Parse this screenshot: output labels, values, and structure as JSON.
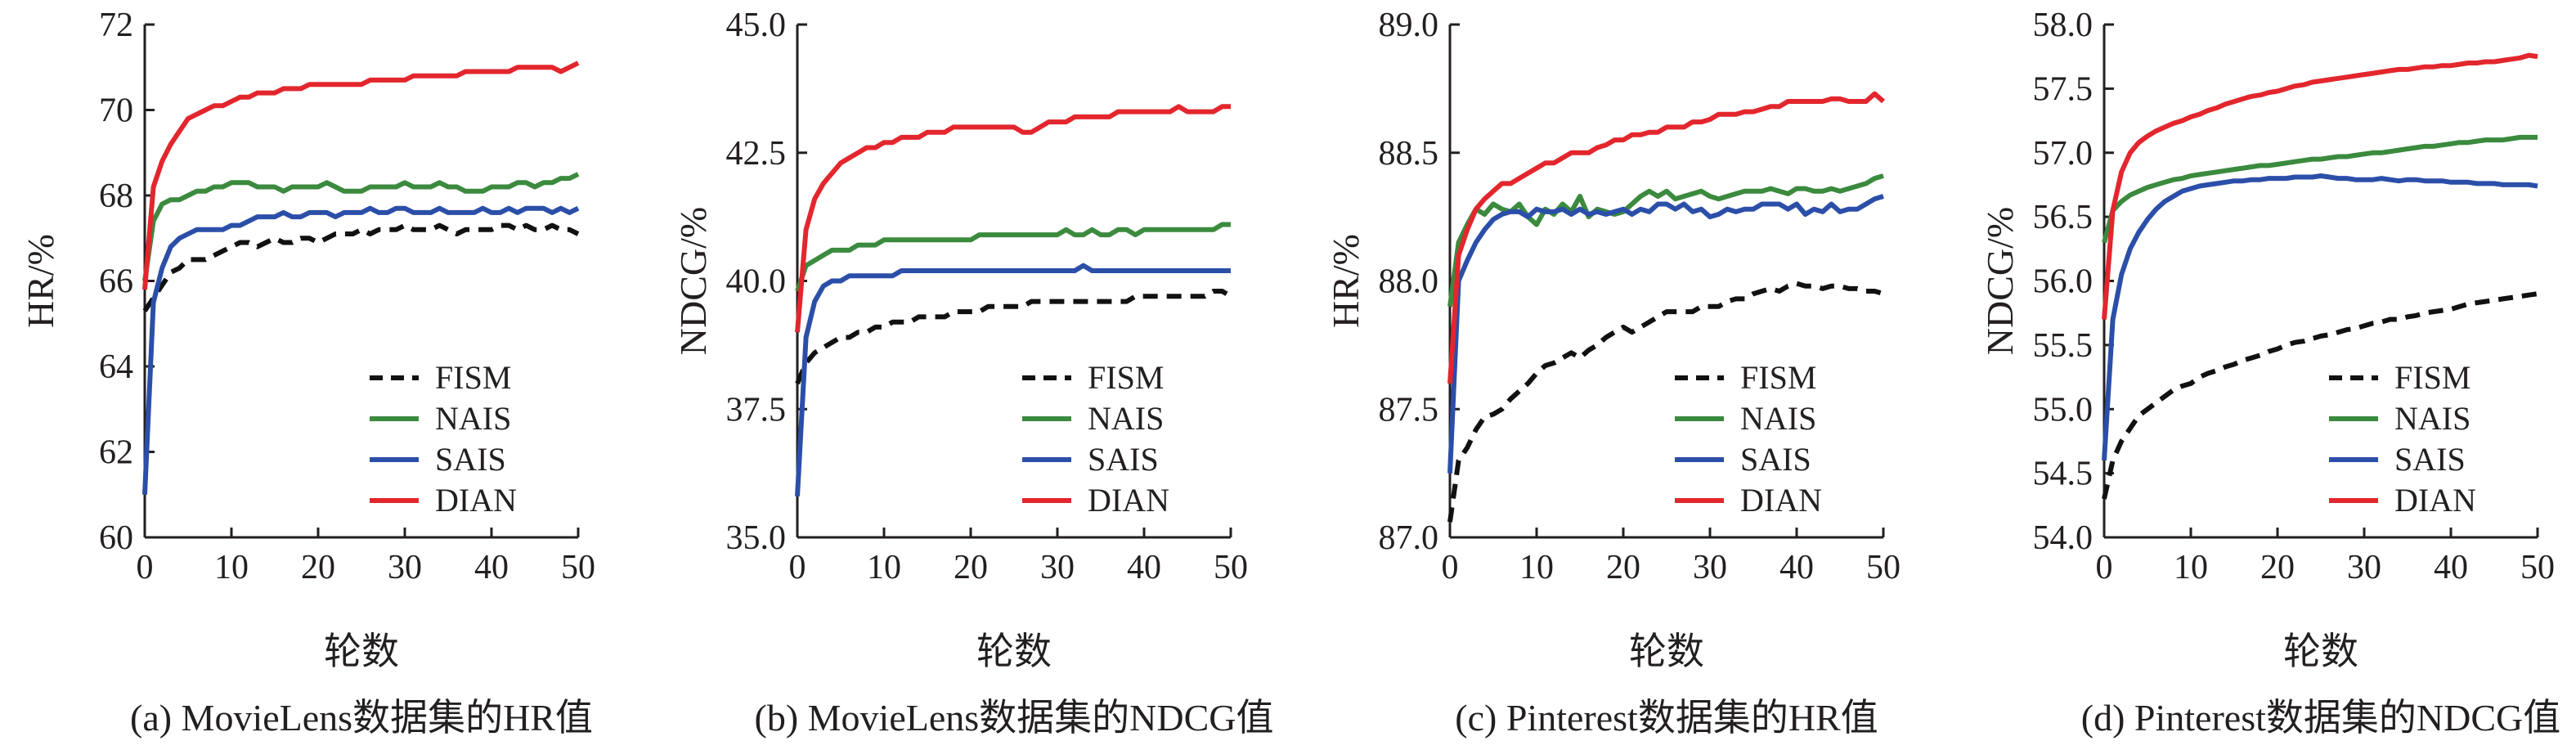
{
  "chart_data": [
    {
      "type": "line",
      "title": "(a) MovieLens数据集的HR值",
      "xlabel": "轮数",
      "ylabel": "HR/%",
      "xlim": [
        0,
        50
      ],
      "ylim": [
        60,
        72
      ],
      "xticks": [
        0,
        10,
        20,
        30,
        40,
        50
      ],
      "yticks": [
        60,
        62,
        64,
        66,
        68,
        70,
        72
      ],
      "ytick_labels": [
        "60",
        "62",
        "64",
        "66",
        "68",
        "70",
        "72"
      ],
      "legend_position": "bottom-right",
      "series": [
        {
          "name": "FISM",
          "style": "dashed",
          "color": "#111111",
          "values": [
            65.3,
            65.6,
            65.9,
            66.2,
            66.3,
            66.5,
            66.5,
            66.5,
            66.6,
            66.7,
            66.8,
            66.9,
            66.9,
            66.8,
            66.9,
            67.0,
            66.9,
            66.9,
            67.0,
            67.0,
            66.9,
            67.0,
            67.1,
            67.1,
            67.1,
            67.2,
            67.1,
            67.2,
            67.2,
            67.2,
            67.3,
            67.2,
            67.2,
            67.2,
            67.3,
            67.2,
            67.1,
            67.2,
            67.2,
            67.2,
            67.2,
            67.3,
            67.3,
            67.2,
            67.3,
            67.2,
            67.2,
            67.3,
            67.2,
            67.2,
            67.1
          ]
        },
        {
          "name": "NAIS",
          "style": "solid",
          "color": "#3b8a3e",
          "values": [
            66.0,
            67.4,
            67.8,
            67.9,
            67.9,
            68.0,
            68.1,
            68.1,
            68.2,
            68.2,
            68.3,
            68.3,
            68.3,
            68.2,
            68.2,
            68.2,
            68.1,
            68.2,
            68.2,
            68.2,
            68.2,
            68.3,
            68.2,
            68.1,
            68.1,
            68.1,
            68.2,
            68.2,
            68.2,
            68.2,
            68.3,
            68.2,
            68.2,
            68.2,
            68.3,
            68.2,
            68.2,
            68.1,
            68.1,
            68.1,
            68.2,
            68.2,
            68.2,
            68.3,
            68.3,
            68.2,
            68.3,
            68.3,
            68.4,
            68.4,
            68.5
          ]
        },
        {
          "name": "SAIS",
          "style": "solid",
          "color": "#2b4fa8",
          "values": [
            61.0,
            65.5,
            66.3,
            66.8,
            67.0,
            67.1,
            67.2,
            67.2,
            67.2,
            67.2,
            67.3,
            67.3,
            67.4,
            67.5,
            67.5,
            67.5,
            67.6,
            67.5,
            67.5,
            67.6,
            67.6,
            67.6,
            67.5,
            67.6,
            67.6,
            67.6,
            67.7,
            67.6,
            67.6,
            67.7,
            67.7,
            67.6,
            67.6,
            67.6,
            67.7,
            67.6,
            67.6,
            67.6,
            67.6,
            67.7,
            67.6,
            67.6,
            67.7,
            67.6,
            67.7,
            67.7,
            67.7,
            67.6,
            67.7,
            67.6,
            67.7
          ]
        },
        {
          "name": "DIAN",
          "style": "solid",
          "color": "#e3262d",
          "values": [
            65.8,
            68.2,
            68.8,
            69.2,
            69.5,
            69.8,
            69.9,
            70.0,
            70.1,
            70.1,
            70.2,
            70.3,
            70.3,
            70.4,
            70.4,
            70.4,
            70.5,
            70.5,
            70.5,
            70.6,
            70.6,
            70.6,
            70.6,
            70.6,
            70.6,
            70.6,
            70.7,
            70.7,
            70.7,
            70.7,
            70.7,
            70.8,
            70.8,
            70.8,
            70.8,
            70.8,
            70.8,
            70.9,
            70.9,
            70.9,
            70.9,
            70.9,
            70.9,
            71.0,
            71.0,
            71.0,
            71.0,
            71.0,
            70.9,
            71.0,
            71.1
          ]
        }
      ]
    },
    {
      "type": "line",
      "title": "(b) MovieLens数据集的NDCG值",
      "xlabel": "轮数",
      "ylabel": "NDCG/%",
      "xlim": [
        0,
        50
      ],
      "ylim": [
        35,
        45
      ],
      "xticks": [
        0,
        10,
        20,
        30,
        40,
        50
      ],
      "yticks": [
        35,
        37.5,
        40,
        42.5,
        45
      ],
      "ytick_labels": [
        "35.0",
        "37.5",
        "40.0",
        "42.5",
        "45.0"
      ],
      "legend_position": "bottom-right",
      "series": [
        {
          "name": "FISM",
          "style": "dashed",
          "color": "#111111",
          "values": [
            38.0,
            38.4,
            38.6,
            38.7,
            38.8,
            38.9,
            38.9,
            39.0,
            39.0,
            39.1,
            39.1,
            39.2,
            39.2,
            39.2,
            39.3,
            39.3,
            39.3,
            39.3,
            39.4,
            39.4,
            39.4,
            39.4,
            39.5,
            39.5,
            39.5,
            39.5,
            39.5,
            39.6,
            39.6,
            39.6,
            39.6,
            39.6,
            39.6,
            39.6,
            39.6,
            39.6,
            39.6,
            39.6,
            39.6,
            39.7,
            39.7,
            39.7,
            39.7,
            39.7,
            39.7,
            39.7,
            39.7,
            39.7,
            39.8,
            39.8,
            39.7
          ]
        },
        {
          "name": "NAIS",
          "style": "solid",
          "color": "#3b8a3e",
          "values": [
            39.8,
            40.3,
            40.4,
            40.5,
            40.6,
            40.6,
            40.6,
            40.7,
            40.7,
            40.7,
            40.8,
            40.8,
            40.8,
            40.8,
            40.8,
            40.8,
            40.8,
            40.8,
            40.8,
            40.8,
            40.8,
            40.9,
            40.9,
            40.9,
            40.9,
            40.9,
            40.9,
            40.9,
            40.9,
            40.9,
            40.9,
            41.0,
            40.9,
            40.9,
            41.0,
            40.9,
            40.9,
            41.0,
            41.0,
            40.9,
            41.0,
            41.0,
            41.0,
            41.0,
            41.0,
            41.0,
            41.0,
            41.0,
            41.0,
            41.1,
            41.1
          ]
        },
        {
          "name": "SAIS",
          "style": "solid",
          "color": "#2b4fa8",
          "values": [
            35.8,
            38.9,
            39.6,
            39.9,
            40.0,
            40.0,
            40.1,
            40.1,
            40.1,
            40.1,
            40.1,
            40.1,
            40.2,
            40.2,
            40.2,
            40.2,
            40.2,
            40.2,
            40.2,
            40.2,
            40.2,
            40.2,
            40.2,
            40.2,
            40.2,
            40.2,
            40.2,
            40.2,
            40.2,
            40.2,
            40.2,
            40.2,
            40.2,
            40.3,
            40.2,
            40.2,
            40.2,
            40.2,
            40.2,
            40.2,
            40.2,
            40.2,
            40.2,
            40.2,
            40.2,
            40.2,
            40.2,
            40.2,
            40.2,
            40.2,
            40.2
          ]
        },
        {
          "name": "DIAN",
          "style": "solid",
          "color": "#e3262d",
          "values": [
            39.0,
            41.0,
            41.6,
            41.9,
            42.1,
            42.3,
            42.4,
            42.5,
            42.6,
            42.6,
            42.7,
            42.7,
            42.8,
            42.8,
            42.8,
            42.9,
            42.9,
            42.9,
            43.0,
            43.0,
            43.0,
            43.0,
            43.0,
            43.0,
            43.0,
            43.0,
            42.9,
            42.9,
            43.0,
            43.1,
            43.1,
            43.1,
            43.2,
            43.2,
            43.2,
            43.2,
            43.2,
            43.3,
            43.3,
            43.3,
            43.3,
            43.3,
            43.3,
            43.3,
            43.4,
            43.3,
            43.3,
            43.3,
            43.3,
            43.4,
            43.4
          ]
        }
      ]
    },
    {
      "type": "line",
      "title": "(c) Pinterest数据集的HR值",
      "xlabel": "轮数",
      "ylabel": "HR/%",
      "xlim": [
        0,
        50
      ],
      "ylim": [
        87,
        89
      ],
      "xticks": [
        0,
        10,
        20,
        30,
        40,
        50
      ],
      "yticks": [
        87,
        87.5,
        88,
        88.5,
        89
      ],
      "ytick_labels": [
        "87.0",
        "87.5",
        "88.0",
        "88.5",
        "89.0"
      ],
      "legend_position": "bottom-right",
      "series": [
        {
          "name": "FISM",
          "style": "dashed",
          "color": "#111111",
          "values": [
            87.06,
            87.3,
            87.35,
            87.42,
            87.47,
            87.48,
            87.5,
            87.54,
            87.57,
            87.6,
            87.64,
            87.67,
            87.68,
            87.7,
            87.72,
            87.7,
            87.73,
            87.75,
            87.78,
            87.8,
            87.82,
            87.8,
            87.82,
            87.84,
            87.86,
            87.88,
            87.88,
            87.88,
            87.88,
            87.9,
            87.9,
            87.9,
            87.92,
            87.93,
            87.93,
            87.95,
            87.96,
            87.97,
            87.96,
            87.98,
            87.99,
            87.98,
            87.98,
            87.97,
            87.98,
            87.98,
            87.97,
            87.97,
            87.96,
            87.96,
            87.95
          ]
        },
        {
          "name": "NAIS",
          "style": "solid",
          "color": "#3b8a3e",
          "values": [
            87.9,
            88.15,
            88.22,
            88.28,
            88.26,
            88.3,
            88.28,
            88.27,
            88.3,
            88.25,
            88.22,
            88.28,
            88.26,
            88.3,
            88.27,
            88.33,
            88.25,
            88.28,
            88.27,
            88.26,
            88.27,
            88.3,
            88.33,
            88.35,
            88.33,
            88.35,
            88.32,
            88.33,
            88.34,
            88.35,
            88.33,
            88.32,
            88.33,
            88.34,
            88.35,
            88.35,
            88.35,
            88.36,
            88.35,
            88.34,
            88.36,
            88.36,
            88.35,
            88.35,
            88.36,
            88.35,
            88.36,
            88.37,
            88.38,
            88.4,
            88.41
          ]
        },
        {
          "name": "SAIS",
          "style": "solid",
          "color": "#2b4fa8",
          "values": [
            87.25,
            88.0,
            88.08,
            88.15,
            88.2,
            88.24,
            88.26,
            88.27,
            88.27,
            88.25,
            88.28,
            88.27,
            88.27,
            88.28,
            88.26,
            88.28,
            88.26,
            88.27,
            88.26,
            88.27,
            88.28,
            88.26,
            88.28,
            88.27,
            88.3,
            88.3,
            88.28,
            88.3,
            88.27,
            88.28,
            88.25,
            88.26,
            88.28,
            88.27,
            88.28,
            88.28,
            88.3,
            88.3,
            88.3,
            88.28,
            88.3,
            88.26,
            88.28,
            88.27,
            88.3,
            88.27,
            88.28,
            88.28,
            88.3,
            88.32,
            88.33
          ]
        },
        {
          "name": "DIAN",
          "style": "solid",
          "color": "#e3262d",
          "values": [
            87.6,
            88.1,
            88.2,
            88.28,
            88.32,
            88.35,
            88.38,
            88.38,
            88.4,
            88.42,
            88.44,
            88.46,
            88.46,
            88.48,
            88.5,
            88.5,
            88.5,
            88.52,
            88.53,
            88.55,
            88.55,
            88.57,
            88.57,
            88.58,
            88.58,
            88.6,
            88.6,
            88.6,
            88.62,
            88.62,
            88.63,
            88.65,
            88.65,
            88.65,
            88.66,
            88.66,
            88.67,
            88.68,
            88.68,
            88.7,
            88.7,
            88.7,
            88.7,
            88.7,
            88.71,
            88.71,
            88.7,
            88.7,
            88.7,
            88.73,
            88.7
          ]
        }
      ]
    },
    {
      "type": "line",
      "title": "(d) Pinterest数据集的NDCG值",
      "xlabel": "轮数",
      "ylabel": "NDCG/%",
      "xlim": [
        0,
        50
      ],
      "ylim": [
        54,
        58
      ],
      "xticks": [
        0,
        10,
        20,
        30,
        40,
        50
      ],
      "yticks": [
        54,
        54.5,
        55,
        55.5,
        56,
        56.5,
        57,
        57.5,
        58
      ],
      "ytick_labels": [
        "54.0",
        "54.5",
        "55.0",
        "55.5",
        "56.0",
        "56.5",
        "57.0",
        "57.5",
        "58.0"
      ],
      "legend_position": "bottom-right",
      "series": [
        {
          "name": "FISM",
          "style": "dashed",
          "color": "#111111",
          "values": [
            54.3,
            54.6,
            54.75,
            54.85,
            54.95,
            55.0,
            55.05,
            55.1,
            55.15,
            55.18,
            55.2,
            55.25,
            55.28,
            55.3,
            55.33,
            55.35,
            55.38,
            55.4,
            55.42,
            55.45,
            55.47,
            55.5,
            55.52,
            55.53,
            55.55,
            55.57,
            55.58,
            55.6,
            55.62,
            55.63,
            55.65,
            55.67,
            55.68,
            55.7,
            55.7,
            55.72,
            55.73,
            55.75,
            55.76,
            55.77,
            55.78,
            55.8,
            55.82,
            55.83,
            55.84,
            55.85,
            55.86,
            55.87,
            55.88,
            55.89,
            55.9
          ]
        },
        {
          "name": "NAIS",
          "style": "solid",
          "color": "#3b8a3e",
          "values": [
            56.3,
            56.55,
            56.62,
            56.67,
            56.7,
            56.73,
            56.75,
            56.77,
            56.79,
            56.8,
            56.82,
            56.83,
            56.84,
            56.85,
            56.86,
            56.87,
            56.88,
            56.89,
            56.9,
            56.9,
            56.91,
            56.92,
            56.93,
            56.94,
            56.95,
            56.95,
            56.96,
            56.97,
            56.97,
            56.98,
            56.99,
            57.0,
            57.0,
            57.01,
            57.02,
            57.03,
            57.04,
            57.05,
            57.05,
            57.06,
            57.07,
            57.08,
            57.08,
            57.09,
            57.1,
            57.1,
            57.1,
            57.11,
            57.12,
            57.12,
            57.12
          ]
        },
        {
          "name": "SAIS",
          "style": "solid",
          "color": "#2b4fa8",
          "values": [
            54.6,
            55.7,
            56.05,
            56.25,
            56.38,
            56.48,
            56.56,
            56.62,
            56.66,
            56.7,
            56.72,
            56.74,
            56.75,
            56.76,
            56.77,
            56.78,
            56.78,
            56.79,
            56.79,
            56.8,
            56.8,
            56.8,
            56.81,
            56.81,
            56.81,
            56.82,
            56.81,
            56.8,
            56.8,
            56.79,
            56.79,
            56.79,
            56.8,
            56.79,
            56.78,
            56.79,
            56.79,
            56.78,
            56.78,
            56.78,
            56.77,
            56.77,
            56.77,
            56.76,
            56.76,
            56.76,
            56.75,
            56.75,
            56.75,
            56.75,
            56.74
          ]
        },
        {
          "name": "DIAN",
          "style": "solid",
          "color": "#e3262d",
          "values": [
            55.7,
            56.55,
            56.85,
            57.0,
            57.08,
            57.13,
            57.17,
            57.2,
            57.23,
            57.25,
            57.28,
            57.3,
            57.33,
            57.35,
            57.38,
            57.4,
            57.42,
            57.44,
            57.45,
            57.47,
            57.48,
            57.5,
            57.52,
            57.53,
            57.55,
            57.56,
            57.57,
            57.58,
            57.59,
            57.6,
            57.61,
            57.62,
            57.63,
            57.64,
            57.65,
            57.65,
            57.66,
            57.67,
            57.67,
            57.68,
            57.68,
            57.69,
            57.7,
            57.7,
            57.71,
            57.71,
            57.72,
            57.73,
            57.74,
            57.76,
            57.75
          ]
        }
      ]
    }
  ]
}
